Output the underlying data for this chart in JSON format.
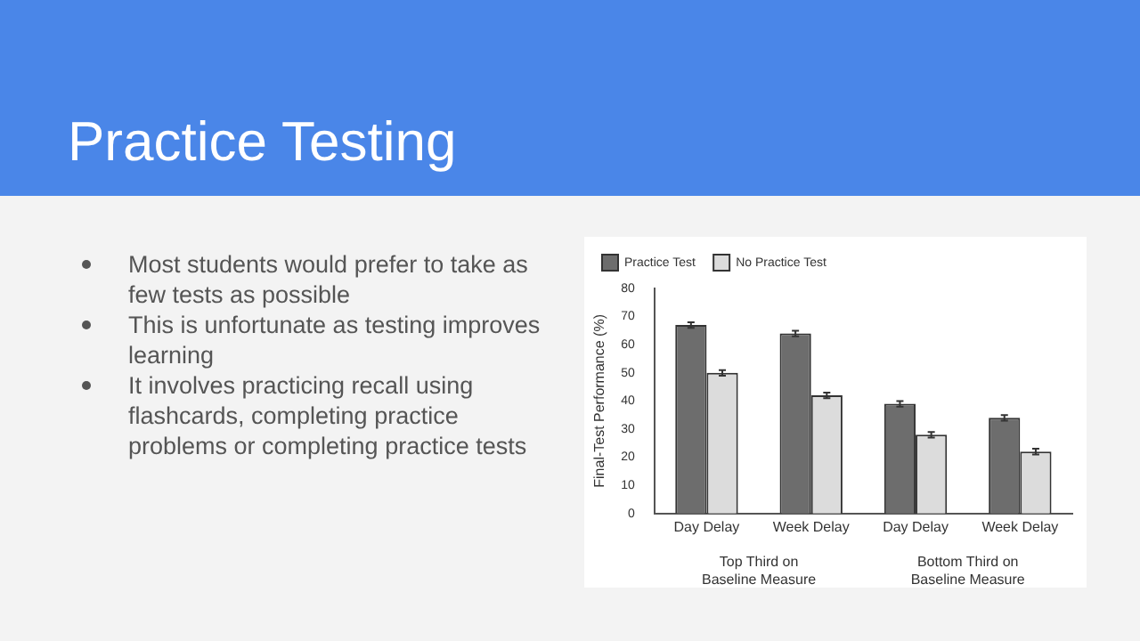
{
  "chart_data": {
    "type": "bar",
    "title": "Practice Testing",
    "ylabel": "Final-Test Performance (%)",
    "categories": [
      "Day Delay",
      "Week Delay",
      "Day Delay",
      "Week Delay"
    ],
    "series": [
      {
        "name": "Practice Test",
        "color": "#6d6d6d",
        "values": [
          67,
          64,
          39,
          34
        ],
        "errors": [
          1,
          1,
          1,
          1
        ]
      },
      {
        "name": "No Practice Test",
        "color": "#dcdcdc",
        "values": [
          50,
          42,
          28,
          22
        ],
        "errors": [
          1,
          1,
          1,
          1
        ]
      }
    ],
    "ylim": [
      0,
      80
    ],
    "yticks": [
      0,
      10,
      20,
      30,
      40,
      50,
      60,
      70,
      80
    ],
    "legend": "top left",
    "grid": false,
    "annotations": [
      "Most students would prefer to take as few tests as possible",
      "This is unfortunate as testing improves learning",
      "It involves practicing recall using flashcards, completing practice problems or completing practice tests",
      "Top Third on Baseline Measure",
      "Bottom Third on Baseline Measure"
    ]
  }
}
